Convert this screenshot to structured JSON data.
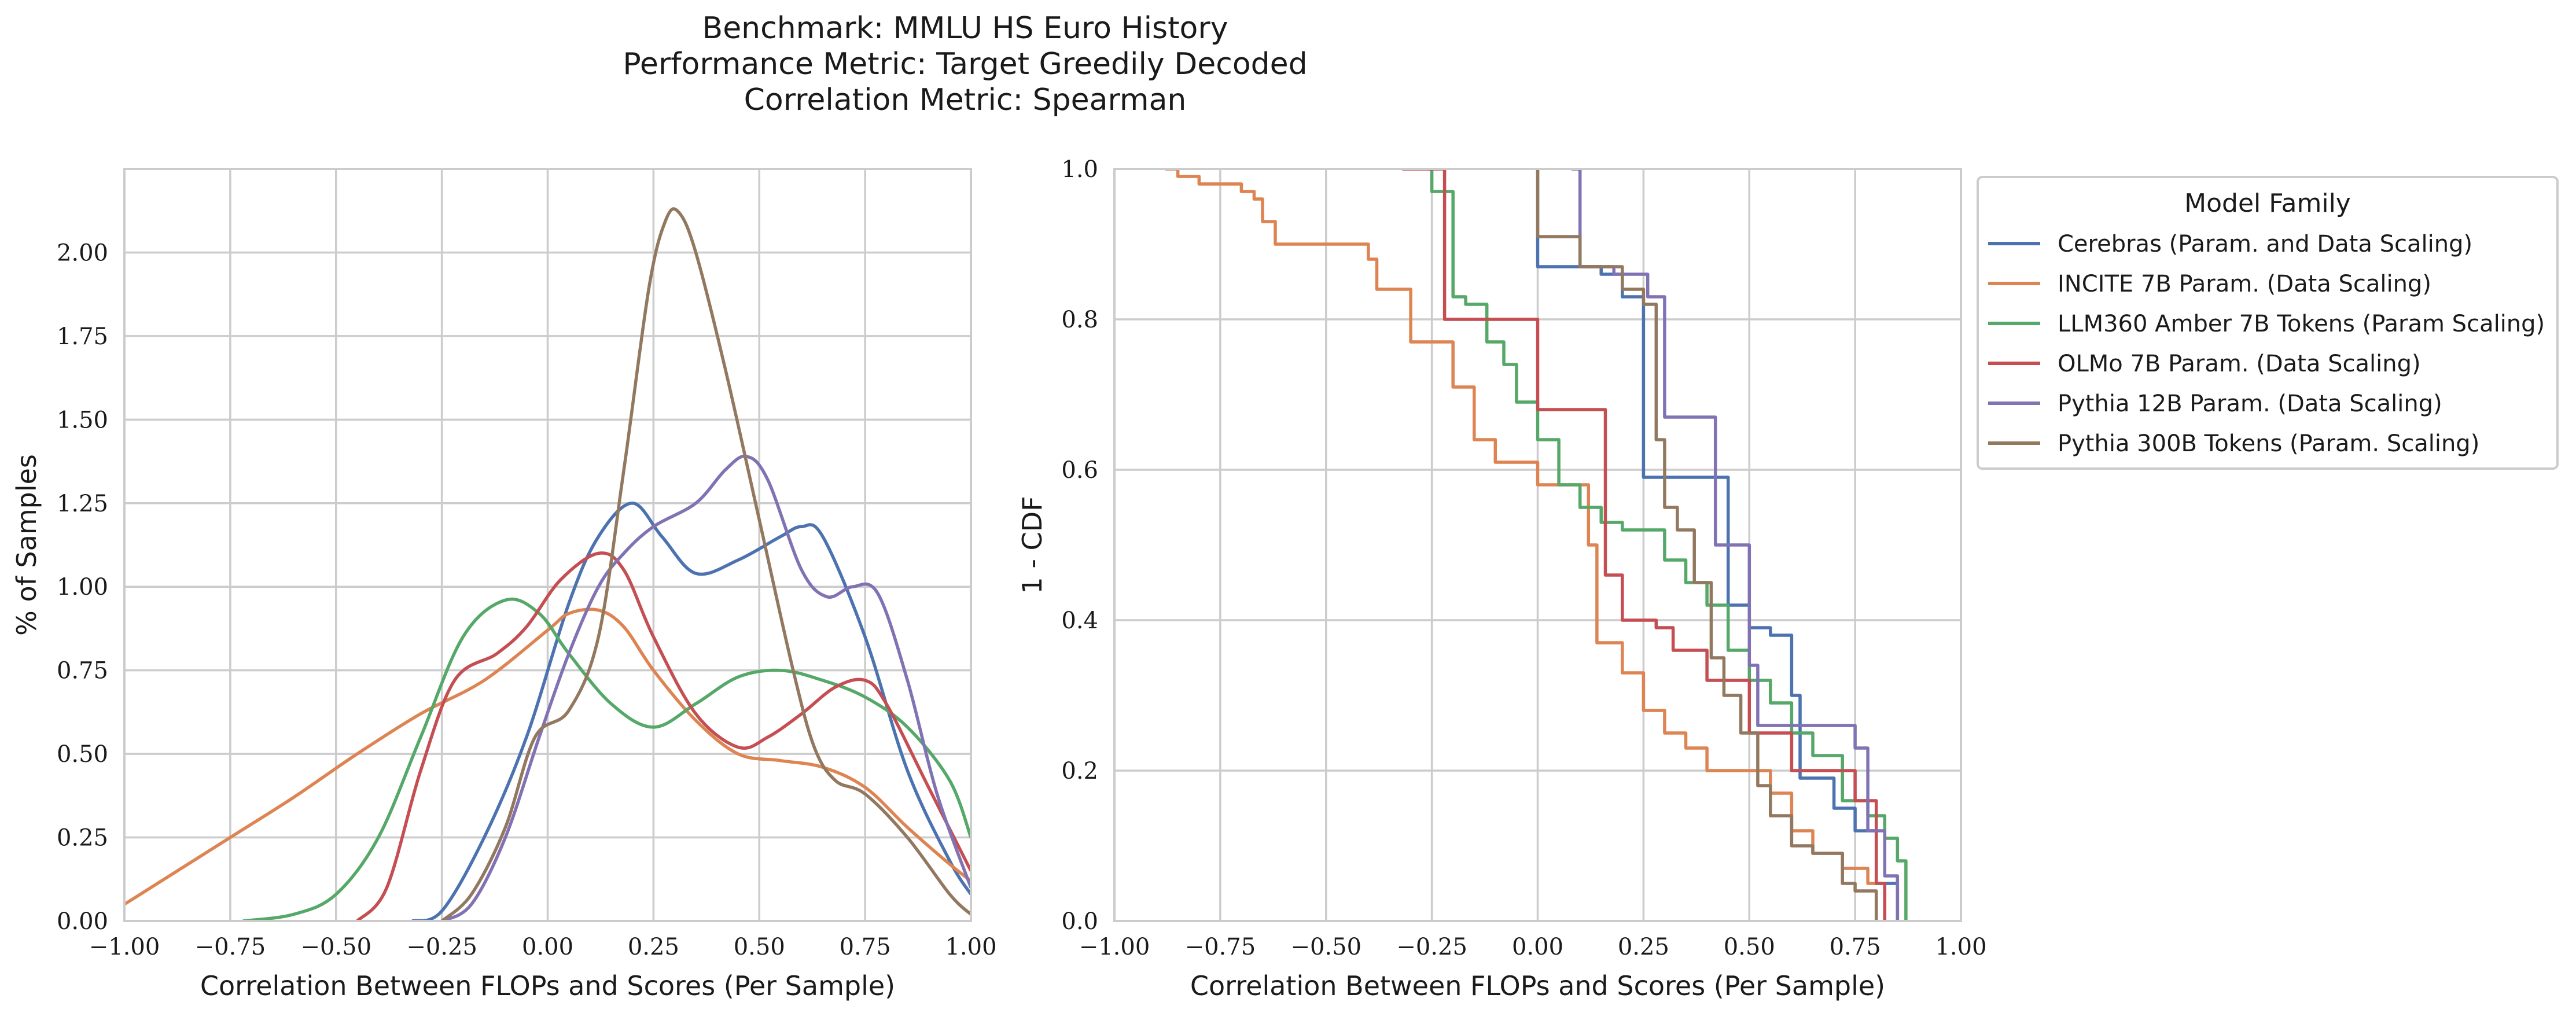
{
  "title": {
    "line1": "Benchmark: MMLU HS Euro History",
    "line2": "Performance Metric: Target Greedily Decoded",
    "line3": "Correlation Metric: Spearman"
  },
  "legend": {
    "title": "Model Family",
    "placement": "outside-right"
  },
  "chart_data": [
    {
      "type": "line",
      "subtype": "kde",
      "xlabel": "Correlation Between FLOPs and Scores (Per Sample)",
      "ylabel": "% of Samples",
      "xlim": [
        -1.0,
        1.0
      ],
      "ylim": [
        0.0,
        2.25
      ],
      "xticks": [
        "−1.00",
        "−0.75",
        "−0.50",
        "−0.25",
        "0.00",
        "0.25",
        "0.50",
        "0.75",
        "1.00"
      ],
      "xtick_values": [
        -1.0,
        -0.75,
        -0.5,
        -0.25,
        0.0,
        0.25,
        0.5,
        0.75,
        1.0
      ],
      "yticks": [
        "0.00",
        "0.25",
        "0.50",
        "0.75",
        "1.00",
        "1.25",
        "1.50",
        "1.75",
        "2.00"
      ],
      "ytick_values": [
        0.0,
        0.25,
        0.5,
        0.75,
        1.0,
        1.25,
        1.5,
        1.75,
        2.0
      ],
      "grid": true,
      "series": [
        {
          "name": "Cerebras (Param. and Data Scaling)",
          "color": "#4c72b0",
          "x": [
            -0.32,
            -0.25,
            -0.15,
            -0.05,
            0.05,
            0.12,
            0.2,
            0.27,
            0.35,
            0.45,
            0.55,
            0.6,
            0.65,
            0.75,
            0.85,
            0.95,
            1.0
          ],
          "y": [
            0.0,
            0.03,
            0.25,
            0.55,
            0.95,
            1.15,
            1.25,
            1.15,
            1.04,
            1.08,
            1.15,
            1.18,
            1.15,
            0.85,
            0.45,
            0.18,
            0.08
          ]
        },
        {
          "name": "INCITE 7B Param. (Data Scaling)",
          "color": "#dd8452",
          "x": [
            -1.0,
            -0.9,
            -0.75,
            -0.6,
            -0.45,
            -0.3,
            -0.15,
            0.0,
            0.05,
            0.12,
            0.18,
            0.25,
            0.35,
            0.45,
            0.55,
            0.65,
            0.75,
            0.85,
            0.95,
            1.0
          ],
          "y": [
            0.05,
            0.13,
            0.25,
            0.37,
            0.5,
            0.62,
            0.72,
            0.87,
            0.92,
            0.93,
            0.88,
            0.75,
            0.6,
            0.5,
            0.48,
            0.46,
            0.4,
            0.28,
            0.17,
            0.12
          ]
        },
        {
          "name": "LLM360 Amber 7B Tokens (Param Scaling)",
          "color": "#55a868",
          "x": [
            -0.72,
            -0.6,
            -0.5,
            -0.4,
            -0.3,
            -0.2,
            -0.1,
            -0.02,
            0.05,
            0.15,
            0.25,
            0.35,
            0.45,
            0.55,
            0.65,
            0.75,
            0.85,
            0.95,
            1.0
          ],
          "y": [
            0.0,
            0.02,
            0.08,
            0.25,
            0.55,
            0.85,
            0.96,
            0.92,
            0.8,
            0.65,
            0.58,
            0.65,
            0.73,
            0.75,
            0.72,
            0.67,
            0.58,
            0.42,
            0.25
          ]
        },
        {
          "name": "OLMo 7B Param. (Data Scaling)",
          "color": "#c44e52",
          "x": [
            -0.45,
            -0.38,
            -0.3,
            -0.22,
            -0.12,
            -0.05,
            0.03,
            0.12,
            0.18,
            0.25,
            0.35,
            0.45,
            0.52,
            0.6,
            0.68,
            0.75,
            0.8,
            0.9,
            1.0
          ],
          "y": [
            0.0,
            0.1,
            0.45,
            0.72,
            0.8,
            0.88,
            1.02,
            1.1,
            1.05,
            0.85,
            0.62,
            0.52,
            0.55,
            0.62,
            0.7,
            0.72,
            0.65,
            0.4,
            0.15
          ]
        },
        {
          "name": "Pythia 12B Param. (Data Scaling)",
          "color": "#8172b3",
          "x": [
            -0.25,
            -0.18,
            -0.1,
            -0.02,
            0.05,
            0.12,
            0.18,
            0.25,
            0.35,
            0.42,
            0.47,
            0.52,
            0.6,
            0.66,
            0.72,
            0.78,
            0.85,
            0.92,
            1.0
          ],
          "y": [
            0.0,
            0.05,
            0.25,
            0.55,
            0.8,
            1.0,
            1.1,
            1.18,
            1.25,
            1.35,
            1.39,
            1.32,
            1.05,
            0.97,
            1.0,
            0.98,
            0.72,
            0.38,
            0.1
          ]
        },
        {
          "name": "Pythia 300B Tokens (Param. Scaling)",
          "color": "#937860",
          "x": [
            -0.25,
            -0.18,
            -0.1,
            -0.03,
            0.05,
            0.12,
            0.18,
            0.24,
            0.28,
            0.31,
            0.35,
            0.42,
            0.5,
            0.58,
            0.63,
            0.68,
            0.75,
            0.85,
            0.95,
            1.0
          ],
          "y": [
            0.0,
            0.08,
            0.28,
            0.55,
            0.63,
            0.85,
            1.35,
            1.9,
            2.1,
            2.12,
            2.0,
            1.65,
            1.2,
            0.75,
            0.52,
            0.42,
            0.38,
            0.25,
            0.08,
            0.02
          ]
        }
      ]
    },
    {
      "type": "line",
      "subtype": "ecdf-complement-step",
      "xlabel": "Correlation Between FLOPs and Scores (Per Sample)",
      "ylabel": "1 - CDF",
      "xlim": [
        -1.0,
        1.0
      ],
      "ylim": [
        0.0,
        1.0
      ],
      "xticks": [
        "−1.00",
        "−0.75",
        "−0.50",
        "−0.25",
        "0.00",
        "0.25",
        "0.50",
        "0.75",
        "1.00"
      ],
      "xtick_values": [
        -1.0,
        -0.75,
        -0.5,
        -0.25,
        0.0,
        0.25,
        0.5,
        0.75,
        1.0
      ],
      "yticks": [
        "0.0",
        "0.2",
        "0.4",
        "0.6",
        "0.8",
        "1.0"
      ],
      "ytick_values": [
        0.0,
        0.2,
        0.4,
        0.6,
        0.8,
        1.0
      ],
      "grid": true,
      "series": [
        {
          "name": "Cerebras (Param. and Data Scaling)",
          "color": "#4c72b0",
          "x": [
            0.0,
            0.0,
            0.07,
            0.15,
            0.2,
            0.25,
            0.41,
            0.45,
            0.5,
            0.55,
            0.6,
            0.62,
            0.7,
            0.75,
            0.8,
            0.85
          ],
          "y": [
            1.0,
            0.87,
            0.87,
            0.86,
            0.83,
            0.59,
            0.59,
            0.42,
            0.39,
            0.38,
            0.3,
            0.19,
            0.15,
            0.12,
            0.05,
            0.01
          ]
        },
        {
          "name": "INCITE 7B Param. (Data Scaling)",
          "color": "#dd8452",
          "x": [
            -0.88,
            -0.85,
            -0.8,
            -0.7,
            -0.67,
            -0.65,
            -0.62,
            -0.6,
            -0.4,
            -0.38,
            -0.3,
            -0.2,
            -0.15,
            -0.1,
            0.0,
            0.12,
            0.14,
            0.2,
            0.25,
            0.3,
            0.35,
            0.4,
            0.45,
            0.55,
            0.6,
            0.65,
            0.72,
            0.78,
            0.82
          ],
          "y": [
            1.0,
            0.99,
            0.98,
            0.97,
            0.96,
            0.93,
            0.9,
            0.9,
            0.88,
            0.84,
            0.77,
            0.71,
            0.64,
            0.61,
            0.58,
            0.5,
            0.37,
            0.33,
            0.28,
            0.25,
            0.23,
            0.2,
            0.2,
            0.17,
            0.12,
            0.09,
            0.07,
            0.05,
            0.02
          ]
        },
        {
          "name": "LLM360 Amber 7B Tokens (Param Scaling)",
          "color": "#55a868",
          "x": [
            -0.26,
            -0.25,
            -0.2,
            -0.17,
            -0.12,
            -0.08,
            -0.05,
            0.0,
            0.05,
            0.1,
            0.15,
            0.2,
            0.3,
            0.35,
            0.4,
            0.45,
            0.5,
            0.55,
            0.6,
            0.65,
            0.72,
            0.78,
            0.82,
            0.85,
            0.87
          ],
          "y": [
            1.0,
            0.97,
            0.83,
            0.82,
            0.77,
            0.74,
            0.69,
            0.64,
            0.58,
            0.55,
            0.53,
            0.52,
            0.48,
            0.45,
            0.42,
            0.36,
            0.32,
            0.29,
            0.25,
            0.22,
            0.16,
            0.14,
            0.11,
            0.08,
            0.03
          ]
        },
        {
          "name": "OLMo 7B Param. (Data Scaling)",
          "color": "#c44e52",
          "x": [
            -0.32,
            -0.22,
            0.0,
            0.16,
            0.2,
            0.28,
            0.32,
            0.4,
            0.5,
            0.6,
            0.68,
            0.75,
            0.8,
            0.82
          ],
          "y": [
            1.0,
            0.8,
            0.68,
            0.46,
            0.4,
            0.39,
            0.36,
            0.32,
            0.25,
            0.2,
            0.2,
            0.16,
            0.05,
            0.02
          ]
        },
        {
          "name": "Pythia 12B Param. (Data Scaling)",
          "color": "#8172b3",
          "x": [
            0.08,
            0.1,
            0.18,
            0.2,
            0.26,
            0.3,
            0.35,
            0.42,
            0.5,
            0.52,
            0.6,
            0.65,
            0.75,
            0.78,
            0.82,
            0.85
          ],
          "y": [
            1.0,
            0.87,
            0.86,
            0.86,
            0.83,
            0.67,
            0.67,
            0.5,
            0.34,
            0.26,
            0.26,
            0.26,
            0.23,
            0.12,
            0.06,
            0.03
          ]
        },
        {
          "name": "Pythia 300B Tokens (Param. Scaling)",
          "color": "#937860",
          "x": [
            0.0,
            0.1,
            0.2,
            0.25,
            0.28,
            0.3,
            0.33,
            0.37,
            0.41,
            0.44,
            0.48,
            0.52,
            0.55,
            0.6,
            0.65,
            0.72,
            0.75,
            0.8
          ],
          "y": [
            0.91,
            0.87,
            0.84,
            0.82,
            0.64,
            0.55,
            0.52,
            0.45,
            0.35,
            0.3,
            0.25,
            0.18,
            0.14,
            0.1,
            0.09,
            0.05,
            0.04,
            0.01
          ]
        }
      ]
    }
  ]
}
